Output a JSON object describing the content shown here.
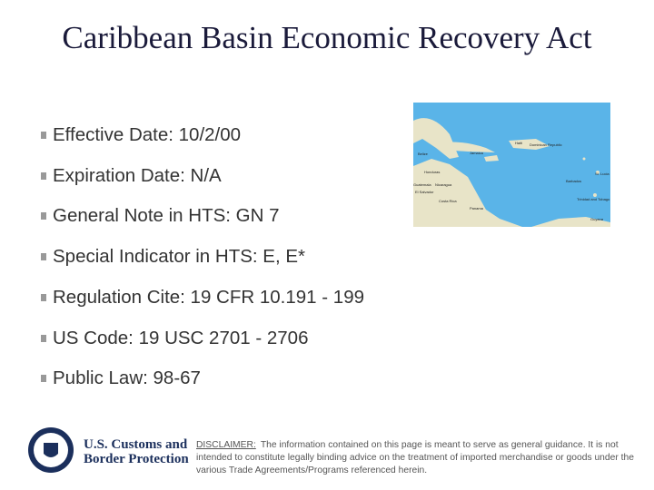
{
  "header": {
    "title": "Caribbean Basin Economic Recovery Act"
  },
  "bullets": [
    "Effective Date:  10/2/00",
    "Expiration Date:  N/A",
    "General Note in HTS:  GN 7",
    "Special Indicator in HTS: E, E*",
    "Regulation Cite:  19 CFR 10.191 - 199",
    "US Code:  19 USC 2701 - 2706",
    "Public Law:  98-67"
  ],
  "map": {
    "labels": [
      "Belize",
      "Honduras",
      "Guatemala",
      "El Salvador",
      "Nicaragua",
      "Costa Rica",
      "Panama",
      "Jamaica",
      "Haiti",
      "Dominican Republic",
      "St. Lucia",
      "Barbados",
      "Trinidad and Tobago",
      "Guyana"
    ]
  },
  "footer": {
    "logo": [
      "U.S. Customs and",
      "Border Protection"
    ],
    "disclaimer_label": "DISCLAIMER:",
    "disclaimer": "The information contained on this page is meant to serve as general guidance.  It is not intended to constitute legally binding advice on the treatment of imported merchandise or goods under the various Trade Agreements/Programs referenced herein."
  }
}
